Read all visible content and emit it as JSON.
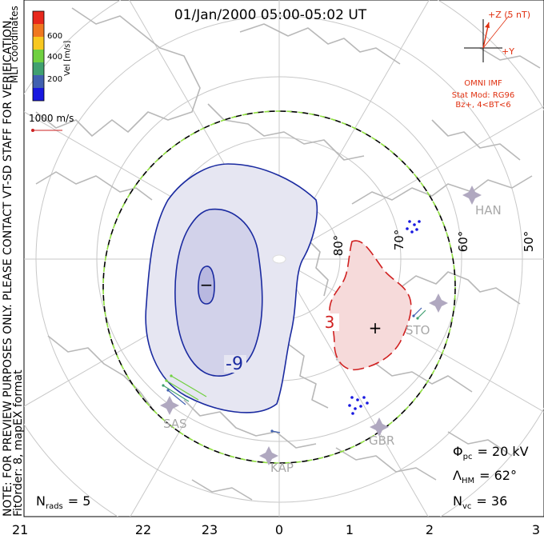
{
  "title": "01/Jan/2000 05:00-05:02 UT",
  "side_note_line1": "NOTE: FOR PREVIEW PURPOSES ONLY. PLEASE CONTACT VT-SD STAFF FOR VERIFICATION.",
  "side_note_line2": "FitOrder: 8,  mapEX format",
  "coord_system": "MLT coordinates",
  "colorbar": {
    "label": "Vel [m/s]",
    "ticks": [
      "600",
      "400",
      "200"
    ],
    "colors": [
      "#e8281c",
      "#f07820",
      "#f8c820",
      "#70d040",
      "#40a070",
      "#4060b0",
      "#1818e0"
    ]
  },
  "reference_vector": {
    "label": "1000 m/s",
    "color": "#cc2020"
  },
  "imf": {
    "z_label": "+Z (5 nT)",
    "y_label": "+Y",
    "source": "OMNI IMF",
    "model_line1": "Stat Mod: RG96",
    "model_line2": "Bz+, 4<BT<6",
    "color": "#e03010"
  },
  "latitude_labels": [
    "80°",
    "70°",
    "60°",
    "50°"
  ],
  "mlt_labels": [
    "21",
    "22",
    "23",
    "0",
    "1",
    "2",
    "3"
  ],
  "contours": {
    "negative_label": "-9",
    "positive_label": "3",
    "negative_center": "−",
    "positive_center": "+",
    "negative_color": "#1a2aa0",
    "positive_color": "#d02020",
    "negative_fill": "#e6e6f2",
    "positive_fill": "#f6dada"
  },
  "radars": [
    "SAS",
    "KAP",
    "GBR",
    "STO",
    "HAN"
  ],
  "stats": {
    "pc_symbol": "Φ",
    "pc_sub": "pc",
    "pc_value": "= 20 kV",
    "hm_symbol": "Λ",
    "hm_sub": "HM",
    "hm_value": "= 62°",
    "vc_symbol": "N",
    "vc_sub": "vc",
    "vc_value": "= 36",
    "rads_symbol": "N",
    "rads_sub": "rads",
    "rads_value": "= 5"
  }
}
